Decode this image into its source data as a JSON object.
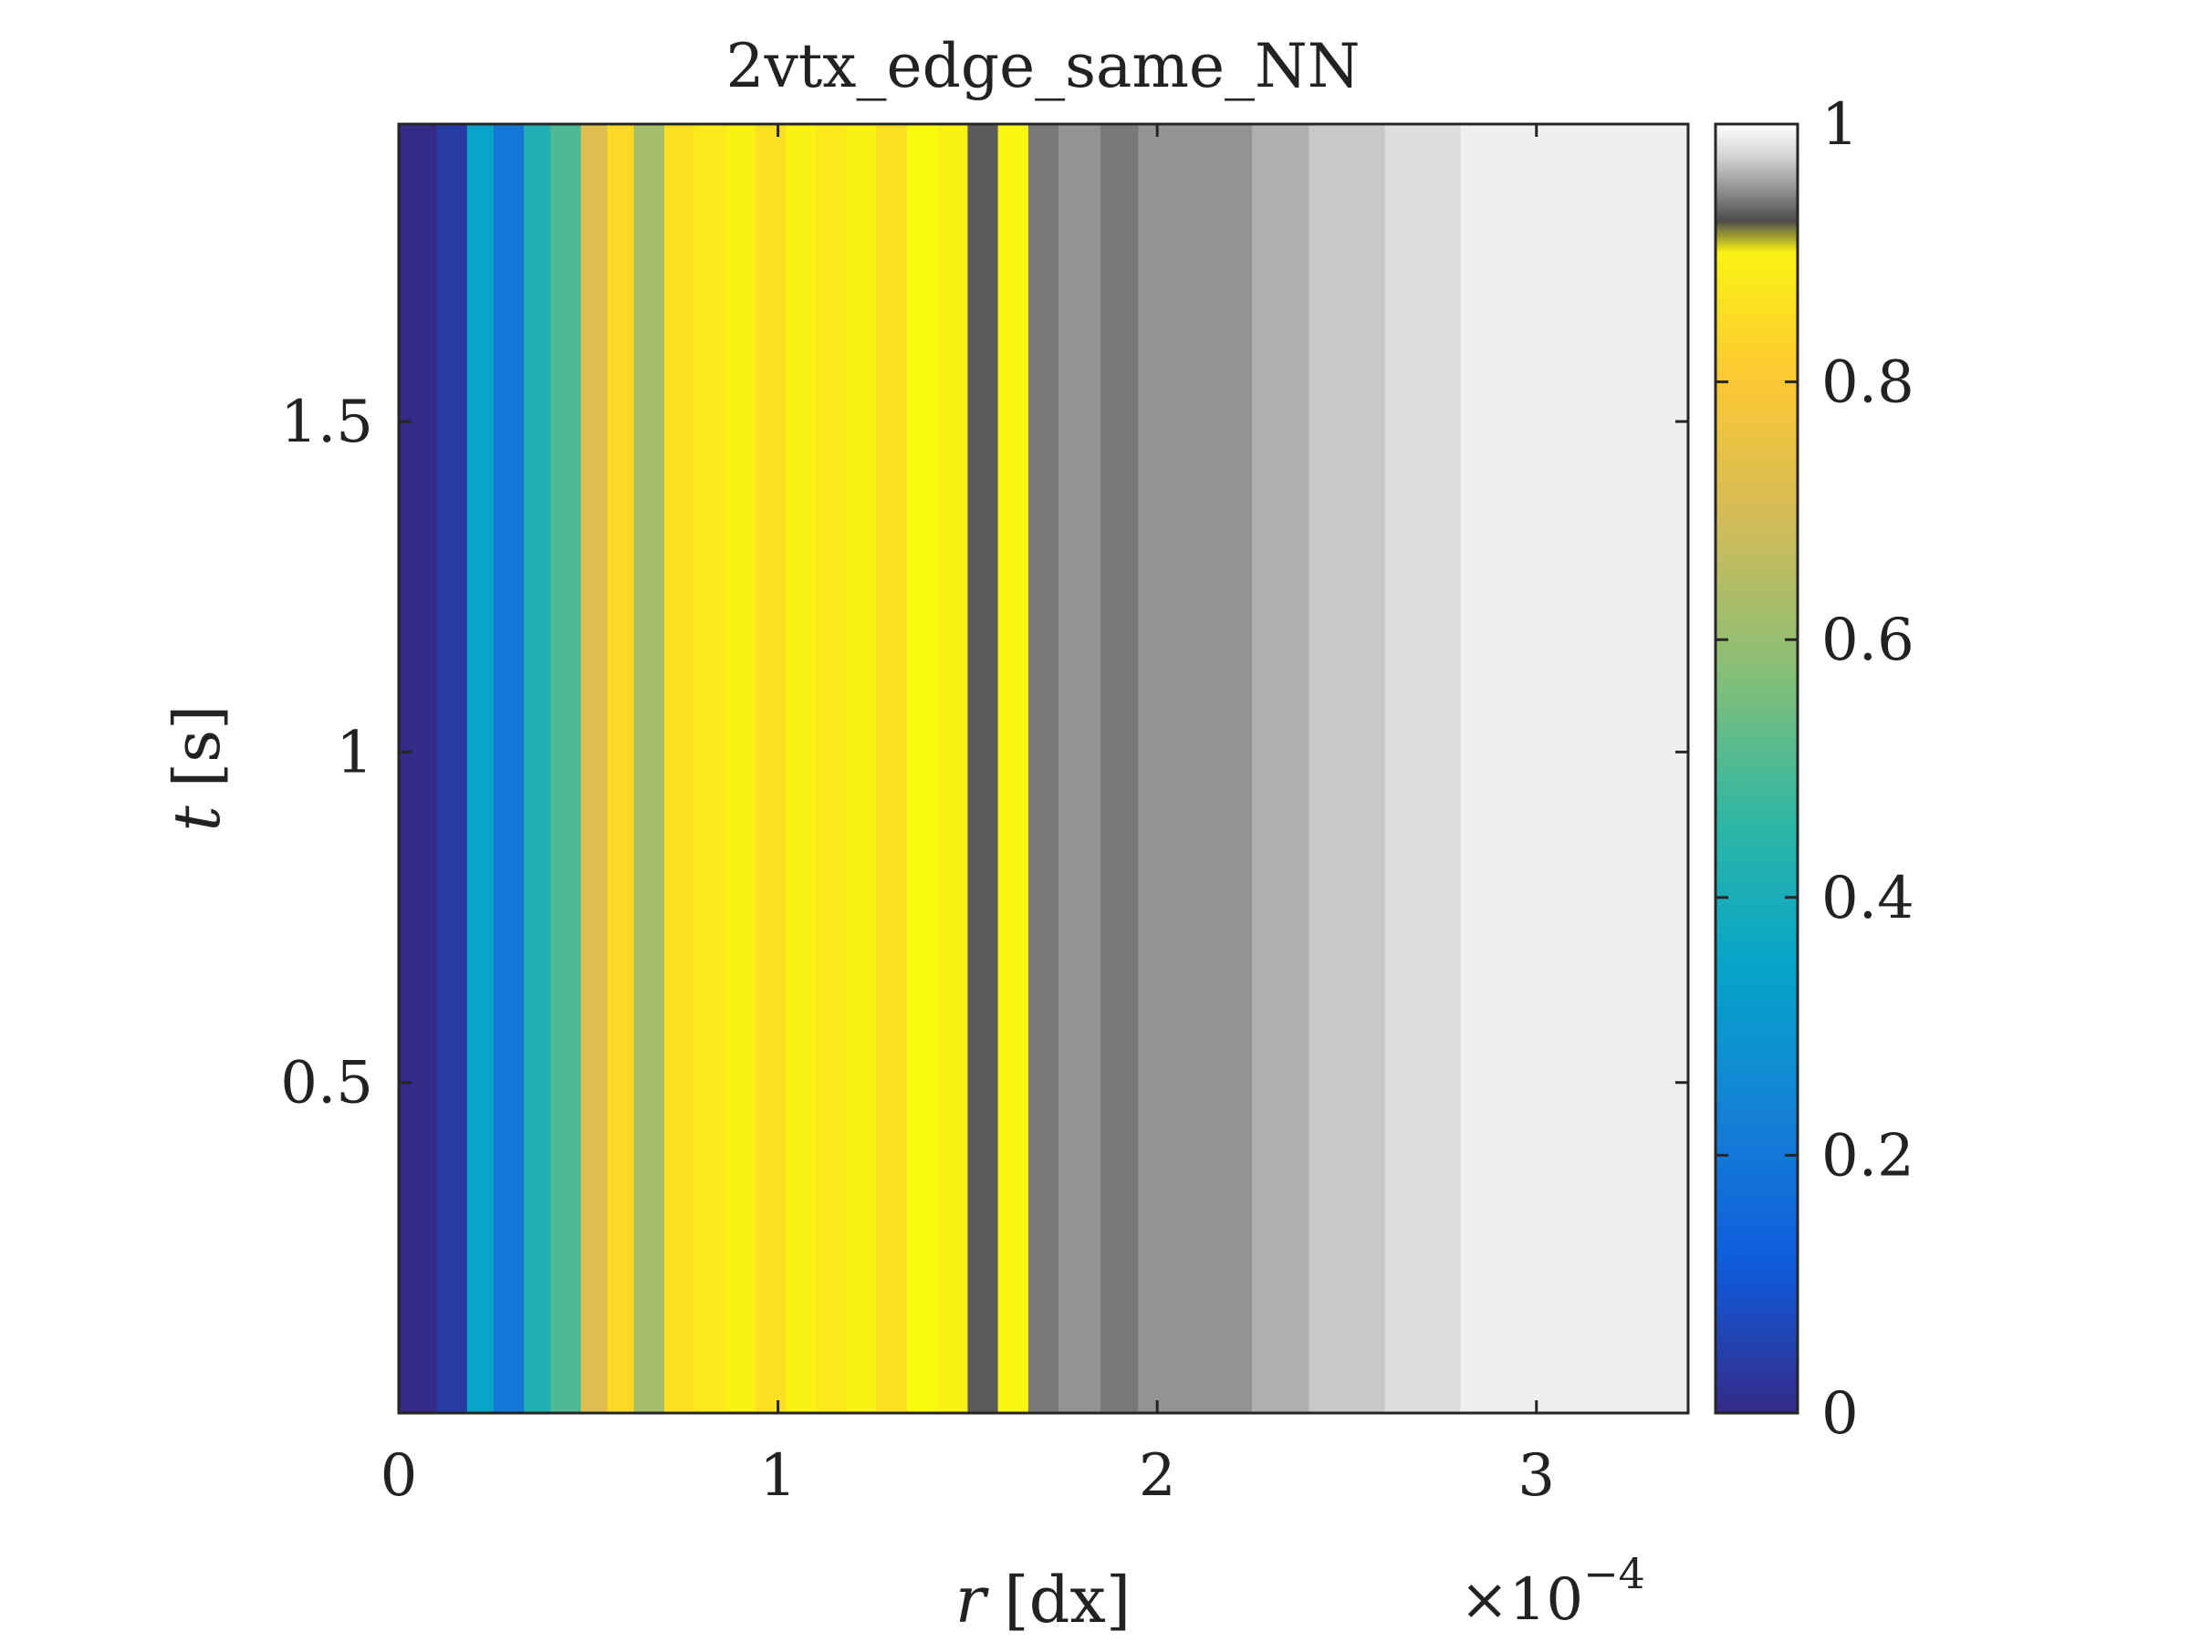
{
  "chart_data": {
    "type": "heatmap",
    "title": "2vtx_edge_same_NN",
    "xlabel": {
      "var": "r",
      "unit": "[dx]"
    },
    "ylabel": {
      "var": "t",
      "unit": "[s]"
    },
    "x_multiplier": {
      "prefix": "×10",
      "exponent": "−4"
    },
    "xlim": [
      0,
      3.4
    ],
    "ylim": [
      0,
      1.95
    ],
    "x_ticks": [
      0,
      1,
      2,
      3
    ],
    "x_tick_labels": [
      "0",
      "1",
      "2",
      "3"
    ],
    "y_ticks": [
      0.5,
      1,
      1.5
    ],
    "y_tick_labels": [
      "0.5",
      "1",
      "1.5"
    ],
    "colorbar": {
      "range": [
        0,
        1
      ],
      "ticks": [
        0,
        0.2,
        0.4,
        0.6,
        0.8,
        1
      ],
      "tick_labels": [
        "0",
        "0.2",
        "0.4",
        "0.6",
        "0.8",
        "1"
      ],
      "colormap": "parula for values up to ~0.92, gray shades above",
      "parula_stops": [
        "#352a87",
        "#0f5cdd",
        "#1481d6",
        "#06a4ca",
        "#2eb7a4",
        "#87bf77",
        "#d1bb59",
        "#fec832",
        "#f9fb0e"
      ],
      "gray_stops": [
        "#3c3c3c",
        "#6e6e6e",
        "#9a9a9a",
        "#c4c4c4",
        "#e6e6e6",
        "#ffffff"
      ]
    },
    "grid": false,
    "columns": [
      {
        "x": 0.0,
        "v": 0.0
      },
      {
        "x": 0.1,
        "v": 0.04
      },
      {
        "x": 0.18,
        "v": 0.35
      },
      {
        "x": 0.25,
        "v": 0.2
      },
      {
        "x": 0.33,
        "v": 0.42
      },
      {
        "x": 0.4,
        "v": 0.5
      },
      {
        "x": 0.48,
        "v": 0.72
      },
      {
        "x": 0.55,
        "v": 0.84
      },
      {
        "x": 0.62,
        "v": 0.62
      },
      {
        "x": 0.7,
        "v": 0.86
      },
      {
        "x": 0.78,
        "v": 0.88
      },
      {
        "x": 0.86,
        "v": 0.9
      },
      {
        "x": 0.94,
        "v": 0.86
      },
      {
        "x": 1.02,
        "v": 0.9
      },
      {
        "x": 1.1,
        "v": 0.88
      },
      {
        "x": 1.18,
        "v": 0.9
      },
      {
        "x": 1.26,
        "v": 0.86
      },
      {
        "x": 1.34,
        "v": 0.92
      },
      {
        "x": 1.42,
        "v": 0.9
      },
      {
        "x": 1.5,
        "v": 0.93
      },
      {
        "x": 1.58,
        "v": 0.91
      },
      {
        "x": 1.66,
        "v": 0.94
      },
      {
        "x": 1.74,
        "v": 0.95
      },
      {
        "x": 1.85,
        "v": 0.94
      },
      {
        "x": 1.95,
        "v": 0.95
      },
      {
        "x": 2.1,
        "v": 0.95
      },
      {
        "x": 2.25,
        "v": 0.96
      },
      {
        "x": 2.4,
        "v": 0.97
      },
      {
        "x": 2.6,
        "v": 0.98
      },
      {
        "x": 2.8,
        "v": 0.99
      },
      {
        "x": 3.0,
        "v": 0.99
      },
      {
        "x": 3.2,
        "v": 0.99
      },
      {
        "x": 3.4,
        "v": 1.0
      }
    ]
  }
}
